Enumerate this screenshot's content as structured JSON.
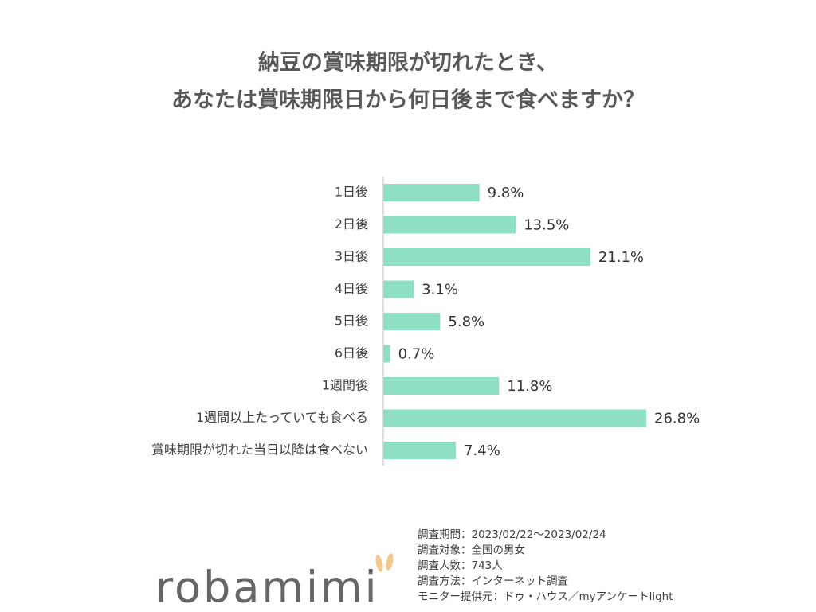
{
  "chart_data": {
    "type": "bar",
    "orientation": "horizontal",
    "title": [
      "納豆の賞味期限が切れたとき、",
      "あなたは賞味期限日から何日後まで食べますか？"
    ],
    "categories": [
      "1日後",
      "2日後",
      "3日後",
      "4日後",
      "5日後",
      "6日後",
      "1週間後",
      "1週間以上たっていても食べる",
      "賞味期限が切れた当日以降は食べない"
    ],
    "values": [
      9.8,
      13.5,
      21.1,
      3.1,
      5.8,
      0.7,
      11.8,
      26.8,
      7.4
    ],
    "value_labels": [
      "9.8%",
      "13.5%",
      "21.1%",
      "3.1%",
      "5.8%",
      "0.7%",
      "11.8%",
      "26.8%",
      "7.4%"
    ],
    "color": "#8de0c4"
  },
  "footer": {
    "notes": [
      "調査期間：2023/02/22～2023/02/24",
      "調査対象：全国の男女",
      "調査人数：743人",
      "調査方法：インターネット調査",
      "モニター提供元：ドゥ・ハウス／myアンケートlight"
    ],
    "logo": "robamimi"
  }
}
